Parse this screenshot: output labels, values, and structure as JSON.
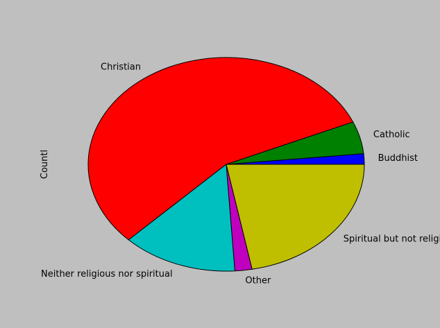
{
  "chart_data": {
    "type": "pie",
    "ylabel": "Countl",
    "start_angle_deg": 0,
    "direction": "counterclockwise",
    "slices": [
      {
        "label": "Buddhist",
        "value": 1.6,
        "color": "#0000ff"
      },
      {
        "label": "Catholic",
        "value": 4.9,
        "color": "#008000"
      },
      {
        "label": "Christian",
        "value": 56.0,
        "color": "#ff0000"
      },
      {
        "label": "Neither religious nor spiritual",
        "value": 13.5,
        "color": "#00bfbf"
      },
      {
        "label": "Other",
        "value": 2.0,
        "color": "#bf00bf"
      },
      {
        "label": "Spiritual but not religious",
        "value": 22.0,
        "color": "#bfbf00"
      }
    ]
  }
}
